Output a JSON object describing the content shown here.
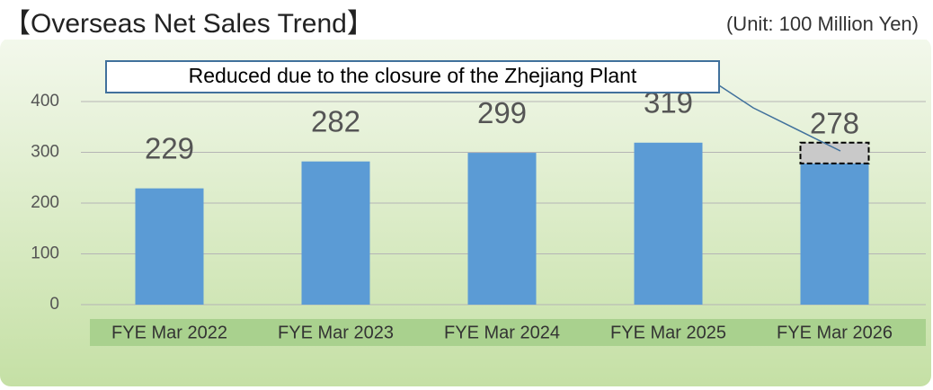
{
  "chart_data": {
    "type": "bar",
    "title": "【Overseas Net Sales Trend】",
    "unit": "(Unit: 100 Million Yen)",
    "categories": [
      "FYE Mar 2022",
      "FYE Mar 2023",
      "FYE Mar 2024",
      "FYE Mar 2025",
      "FYE Mar 2026"
    ],
    "values": [
      229,
      282,
      299,
      319,
      278
    ],
    "color": "#5b9bd5",
    "ylim": [
      0,
      400
    ],
    "yticks": [
      0,
      100,
      200,
      300,
      400
    ],
    "grid": true,
    "annotation": "Reduced due to the closure of the Zhejiang Plant"
  }
}
